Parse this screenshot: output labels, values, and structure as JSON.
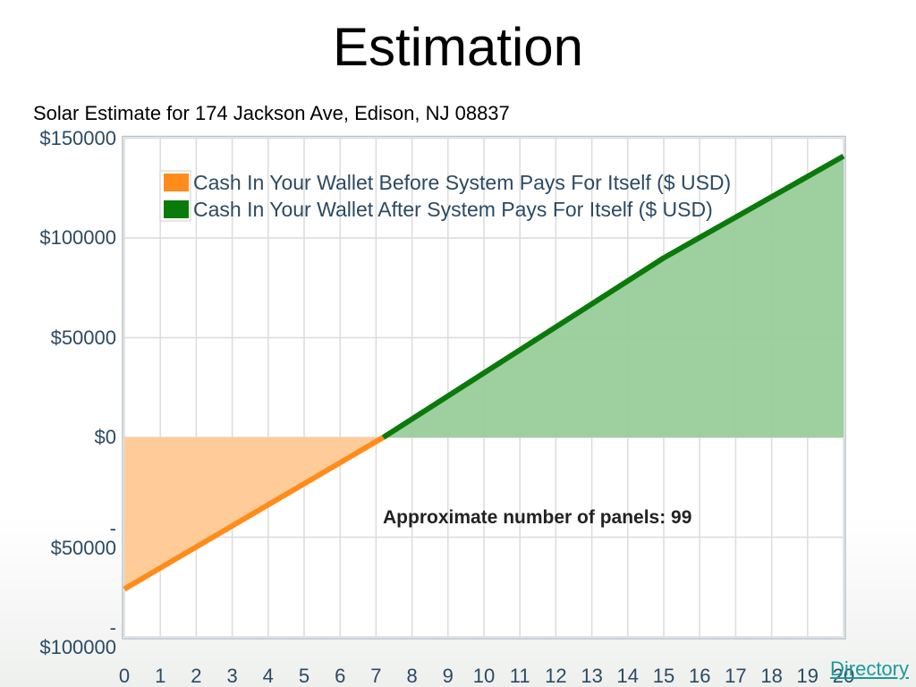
{
  "title": "Estimation",
  "subtitle": "Solar Estimate for 174 Jackson Ave, Edison, NJ 08837",
  "link": "Directory",
  "chart_data": {
    "type": "area",
    "annotation": "Approximate number of panels: 99",
    "x": [
      0,
      7.2,
      15,
      20
    ],
    "series": [
      {
        "name": "Cash In Your Wallet Before System Pays For Itself ($ USD)",
        "color": "#ff8c1a",
        "fill": "#ffc994",
        "values": [
          -76000,
          0,
          null,
          null
        ]
      },
      {
        "name": "Cash In Your Wallet After System Pays For Itself ($ USD)",
        "color": "#0a7a0a",
        "fill": "#99cc99",
        "values": [
          null,
          0,
          90000,
          141000
        ]
      }
    ],
    "xlim": [
      0,
      20
    ],
    "xticks": [
      0,
      1,
      2,
      3,
      4,
      5,
      6,
      7,
      8,
      9,
      10,
      11,
      12,
      13,
      14,
      15,
      16,
      17,
      18,
      19,
      20
    ],
    "ylim": [
      -100000,
      150000
    ],
    "yticks": [
      {
        "value": -100000,
        "label": "-\n$100000"
      },
      {
        "value": -50000,
        "label": "-\n$50000"
      },
      {
        "value": 0,
        "label": "$0"
      },
      {
        "value": 50000,
        "label": "$50000"
      },
      {
        "value": 100000,
        "label": "$100000"
      },
      {
        "value": 150000,
        "label": "$150000"
      }
    ],
    "grid": true,
    "legend": "top-left"
  }
}
